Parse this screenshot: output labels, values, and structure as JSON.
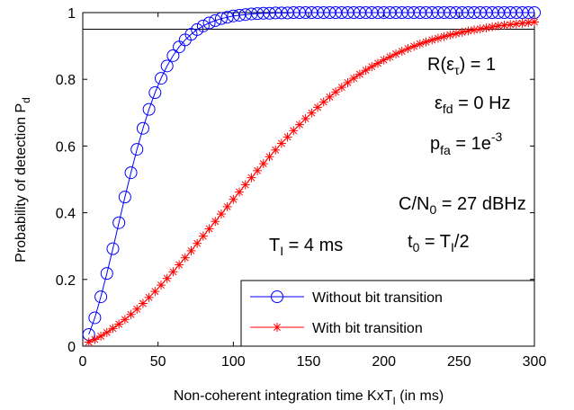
{
  "chart_data": {
    "type": "line",
    "xlabel_main": "Non-coherent integration time KxT",
    "xlabel_sub": "I",
    "xlabel_tail": " (in ms)",
    "ylabel_main": "Probability of detection P",
    "ylabel_sub": "d",
    "xlim": [
      0,
      300
    ],
    "ylim": [
      0,
      1
    ],
    "xticks": [
      "0",
      "50",
      "100",
      "150",
      "200",
      "250",
      "300"
    ],
    "yticks": [
      "0",
      "0.2",
      "0.4",
      "0.6",
      "0.8",
      "1"
    ],
    "reference_line": 0.95,
    "legend_position": "bottom-right",
    "annotations": {
      "r_main": "R(ε",
      "r_sub": "τ",
      "r_tail": ") = 1",
      "efd_main": "ε",
      "efd_sub": "fd",
      "efd_tail": " = 0 Hz",
      "pfa_main": "p",
      "pfa_sub": "fa",
      "pfa_mid": " = 1e",
      "pfa_sup": "-3",
      "cn_main": "C/N",
      "cn_sub": "0",
      "cn_tail": " = 27 dBHz",
      "ti_main": "T",
      "ti_sub": "I",
      "ti_tail": " = 4 ms",
      "t0_main": "t",
      "t0_sub": "0",
      "t0_mid": " = T",
      "t0_sub2": "I",
      "t0_tail": "/2"
    },
    "series": [
      {
        "name": "Without bit transition",
        "color": "#0000ff",
        "marker": "circle",
        "x": [
          4,
          8,
          12,
          16,
          20,
          24,
          28,
          32,
          36,
          40,
          44,
          48,
          52,
          56,
          60,
          64,
          68,
          72,
          76,
          80,
          84,
          88,
          92,
          96,
          100,
          104,
          108,
          112,
          116,
          120,
          124,
          128,
          132,
          136,
          140,
          144,
          148,
          152,
          156,
          160,
          164,
          168,
          172,
          176,
          180,
          184,
          188,
          192,
          196,
          200,
          204,
          208,
          212,
          216,
          220,
          224,
          228,
          232,
          236,
          240,
          244,
          248,
          252,
          256,
          260,
          264,
          268,
          272,
          276,
          280,
          284,
          288,
          292,
          296,
          300
        ],
        "y": [
          0.035,
          0.085,
          0.148,
          0.218,
          0.292,
          0.37,
          0.447,
          0.52,
          0.59,
          0.653,
          0.71,
          0.76,
          0.803,
          0.84,
          0.871,
          0.897,
          0.918,
          0.935,
          0.949,
          0.96,
          0.969,
          0.976,
          0.982,
          0.986,
          0.99,
          0.992,
          0.994,
          0.996,
          0.997,
          0.998,
          0.998,
          0.999,
          0.999,
          0.999,
          1.0,
          1.0,
          1.0,
          1.0,
          1.0,
          1.0,
          1.0,
          1.0,
          1.0,
          1.0,
          1.0,
          1.0,
          1.0,
          1.0,
          1.0,
          1.0,
          1.0,
          1.0,
          1.0,
          1.0,
          1.0,
          1.0,
          1.0,
          1.0,
          1.0,
          1.0,
          1.0,
          1.0,
          1.0,
          1.0,
          1.0,
          1.0,
          1.0,
          1.0,
          1.0,
          1.0,
          1.0,
          1.0,
          1.0,
          1.0,
          1.0
        ]
      },
      {
        "name": "With bit transition",
        "color": "#ff0000",
        "marker": "asterisk",
        "x": [
          4,
          8,
          12,
          16,
          20,
          24,
          28,
          32,
          36,
          40,
          44,
          48,
          52,
          56,
          60,
          64,
          68,
          72,
          76,
          80,
          84,
          88,
          92,
          96,
          100,
          104,
          108,
          112,
          116,
          120,
          124,
          128,
          132,
          136,
          140,
          144,
          148,
          152,
          156,
          160,
          164,
          168,
          172,
          176,
          180,
          184,
          188,
          192,
          196,
          200,
          204,
          208,
          212,
          216,
          220,
          224,
          228,
          232,
          236,
          240,
          244,
          248,
          252,
          256,
          260,
          264,
          268,
          272,
          276,
          280,
          284,
          288,
          292,
          296,
          300
        ],
        "y": [
          0.012,
          0.02,
          0.03,
          0.041,
          0.053,
          0.066,
          0.08,
          0.095,
          0.111,
          0.128,
          0.146,
          0.164,
          0.183,
          0.203,
          0.223,
          0.244,
          0.265,
          0.286,
          0.308,
          0.33,
          0.352,
          0.374,
          0.396,
          0.418,
          0.44,
          0.462,
          0.484,
          0.505,
          0.526,
          0.547,
          0.568,
          0.588,
          0.608,
          0.627,
          0.646,
          0.664,
          0.682,
          0.699,
          0.716,
          0.732,
          0.747,
          0.762,
          0.776,
          0.79,
          0.803,
          0.815,
          0.827,
          0.838,
          0.848,
          0.858,
          0.867,
          0.876,
          0.884,
          0.892,
          0.899,
          0.906,
          0.912,
          0.918,
          0.923,
          0.928,
          0.933,
          0.937,
          0.941,
          0.945,
          0.948,
          0.951,
          0.954,
          0.957,
          0.96,
          0.962,
          0.964,
          0.966,
          0.968,
          0.97,
          0.972
        ]
      }
    ]
  }
}
